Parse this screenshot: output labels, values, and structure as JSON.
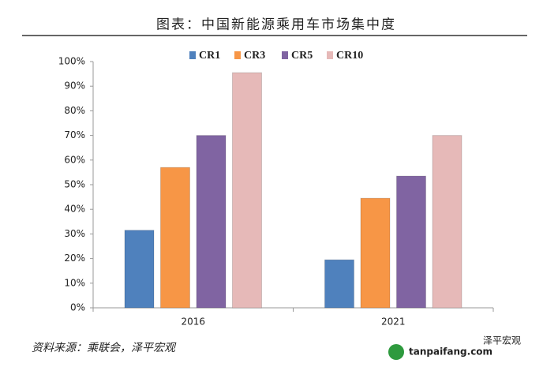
{
  "chart_data": {
    "type": "bar",
    "title": "图表：中国新能源乘用车市场集中度",
    "categories": [
      "2016",
      "2021"
    ],
    "series": [
      {
        "name": "CR1",
        "color": "#4f81bd",
        "values": [
          31.5,
          19.5
        ]
      },
      {
        "name": "CR3",
        "color": "#f79646",
        "values": [
          57,
          44.5
        ]
      },
      {
        "name": "CR5",
        "color": "#8064a2",
        "values": [
          70,
          53.5
        ]
      },
      {
        "name": "CR10",
        "color": "#e6b9b8",
        "values": [
          95.5,
          70
        ]
      }
    ],
    "ylim": [
      0,
      100
    ],
    "yticks": [
      {
        "value": 0,
        "label": "0%"
      },
      {
        "value": 10,
        "label": "10%"
      },
      {
        "value": 20,
        "label": "20%"
      },
      {
        "value": 30,
        "label": "30%"
      },
      {
        "value": 40,
        "label": "40%"
      },
      {
        "value": 50,
        "label": "50%"
      },
      {
        "value": 60,
        "label": "60%"
      },
      {
        "value": 70,
        "label": "70%"
      },
      {
        "value": 80,
        "label": "80%"
      },
      {
        "value": 90,
        "label": "90%"
      },
      {
        "value": 100,
        "label": "100%"
      }
    ],
    "legend": "top",
    "source": "资料来源：乘联会，泽平宏观",
    "watermark": [
      "泽平宏观",
      "tanpaifang.com"
    ]
  }
}
